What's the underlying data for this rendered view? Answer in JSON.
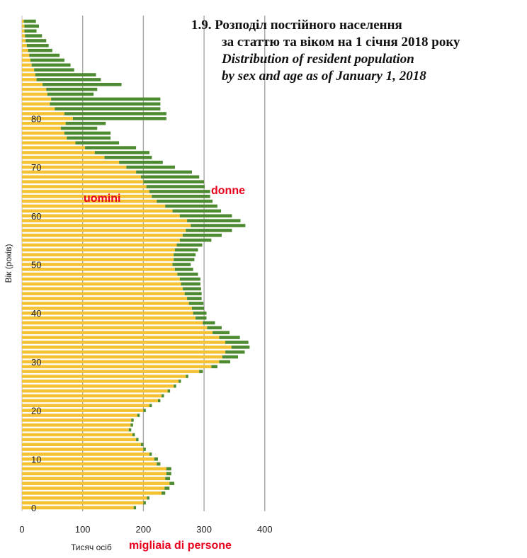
{
  "title": {
    "line1": "1.9. Розподіл постійного населення",
    "line2": "за статтю та віком  на 1 січня 2018 року",
    "line3": "Distribution of resident population",
    "line4": "by sex and age as of January 1, 2018"
  },
  "annotations": {
    "men": "uomini",
    "women": "donne",
    "xlabel_it": "migliaia di persone"
  },
  "colors": {
    "men": "#f5c234",
    "women": "#4e8a32",
    "grid": "#a6a6a6"
  },
  "chart_data": {
    "type": "bar",
    "orientation": "horizontal",
    "stacked": true,
    "xlabel": "Тисяч осіб",
    "ylabel": "Вік (років)",
    "xlim": [
      0,
      400
    ],
    "x_ticks": [
      0,
      100,
      200,
      300,
      400
    ],
    "y_ticks": [
      0,
      10,
      20,
      30,
      40,
      50,
      60,
      70,
      80
    ],
    "ages": [
      0,
      1,
      2,
      3,
      4,
      5,
      6,
      7,
      8,
      9,
      10,
      11,
      12,
      13,
      14,
      15,
      16,
      17,
      18,
      19,
      20,
      21,
      22,
      23,
      24,
      25,
      26,
      27,
      28,
      29,
      30,
      31,
      32,
      33,
      34,
      35,
      36,
      37,
      38,
      39,
      40,
      41,
      42,
      43,
      44,
      45,
      46,
      47,
      48,
      49,
      50,
      51,
      52,
      53,
      54,
      55,
      56,
      57,
      58,
      59,
      60,
      61,
      62,
      63,
      64,
      65,
      66,
      67,
      68,
      69,
      70,
      71,
      72,
      73,
      74,
      75,
      76,
      77,
      78,
      79,
      80,
      81,
      82,
      83,
      84,
      85,
      86,
      87,
      88,
      89,
      90,
      91,
      92,
      93,
      94,
      95,
      96,
      97,
      98,
      99,
      100
    ],
    "series": [
      {
        "name": "uomini",
        "values": [
          184,
          200,
          206,
          230,
          235,
          243,
          236,
          238,
          238,
          222,
          218,
          210,
          200,
          196,
          188,
          182,
          176,
          179,
          180,
          190,
          200,
          210,
          224,
          230,
          240,
          250,
          258,
          270,
          292,
          312,
          325,
          330,
          335,
          345,
          335,
          325,
          314,
          305,
          298,
          286,
          282,
          280,
          275,
          272,
          268,
          265,
          262,
          260,
          256,
          252,
          248,
          250,
          250,
          252,
          255,
          260,
          265,
          270,
          278,
          272,
          260,
          248,
          236,
          222,
          214,
          210,
          205,
          200,
          196,
          188,
          172,
          160,
          136,
          120,
          104,
          88,
          74,
          70,
          64,
          72,
          84,
          70,
          54,
          46,
          48,
          42,
          40,
          34,
          24,
          22,
          20,
          16,
          14,
          12,
          10,
          8,
          6,
          5,
          4,
          4,
          3
        ],
        "note": "values read from the chart (thousands of persons), estimated from gridlines"
      },
      {
        "name": "donne",
        "values": [
          4,
          4,
          4,
          6,
          8,
          8,
          8,
          8,
          8,
          6,
          6,
          4,
          4,
          4,
          4,
          4,
          4,
          4,
          4,
          4,
          4,
          4,
          4,
          4,
          4,
          4,
          4,
          4,
          6,
          10,
          18,
          26,
          32,
          30,
          38,
          34,
          28,
          24,
          20,
          18,
          22,
          20,
          24,
          24,
          28,
          30,
          32,
          34,
          34,
          30,
          30,
          34,
          36,
          38,
          42,
          52,
          64,
          76,
          90,
          88,
          86,
          80,
          86,
          92,
          96,
          100,
          96,
          100,
          96,
          92,
          80,
          72,
          78,
          90,
          84,
          72,
          72,
          76,
          60,
          66,
          154,
          168,
          174,
          182,
          180,
          76,
          84,
          130,
          106,
          100,
          66,
          64,
          56,
          50,
          40,
          36,
          34,
          28,
          20,
          24,
          20
        ],
        "note": "values read from the chart (thousands of persons), extending from the men's bar end"
      }
    ]
  }
}
